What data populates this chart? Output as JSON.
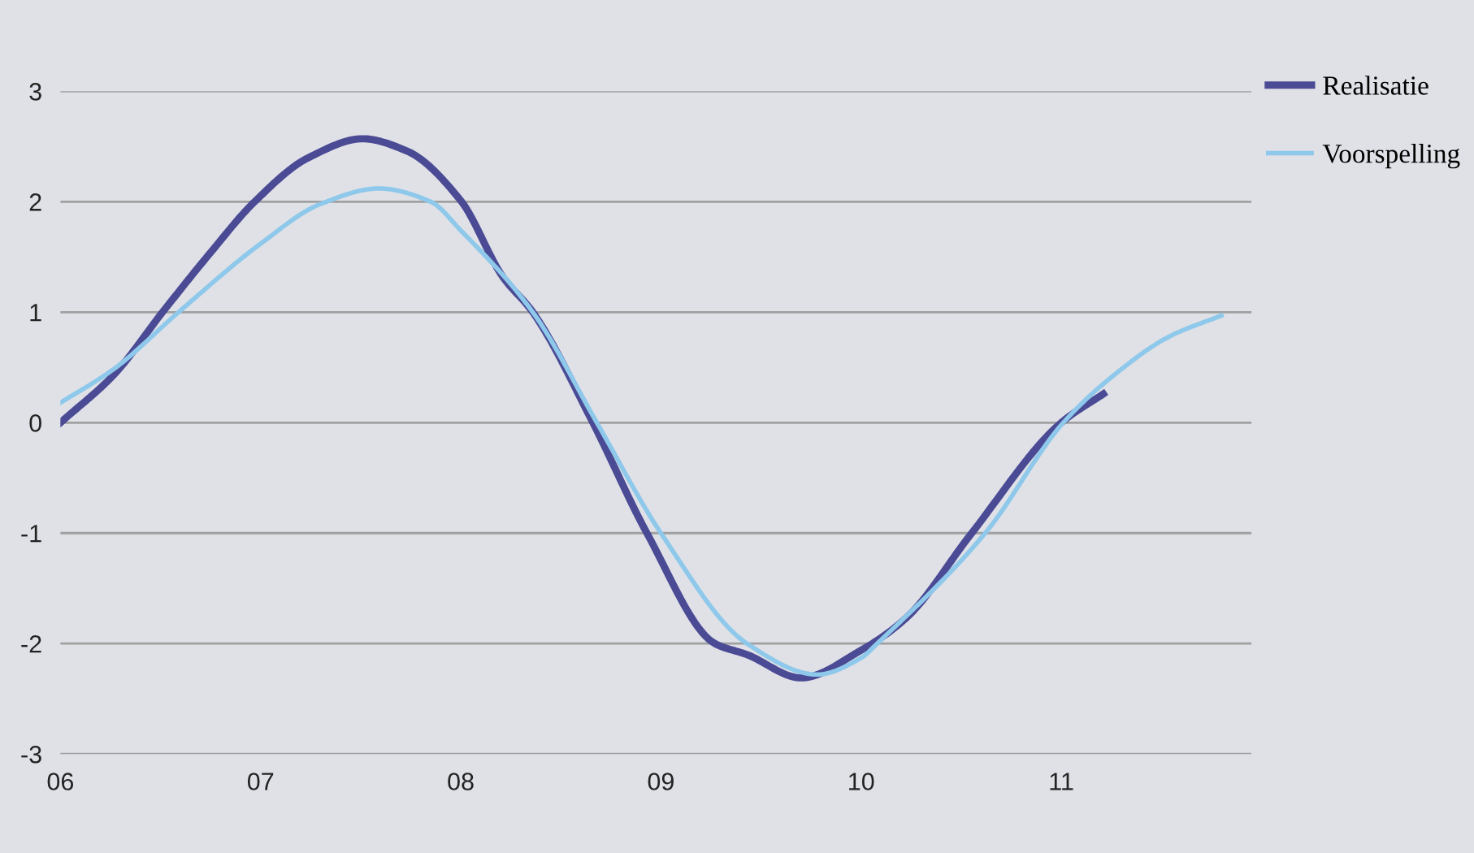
{
  "chart_data": {
    "type": "line",
    "xlim": [
      6,
      11.95
    ],
    "xticks": [
      {
        "value": 6,
        "label": "06"
      },
      {
        "value": 7,
        "label": "07"
      },
      {
        "value": 8,
        "label": "08"
      },
      {
        "value": 9,
        "label": "09"
      },
      {
        "value": 10,
        "label": "10"
      },
      {
        "value": 11,
        "label": "11"
      }
    ],
    "ylim": [
      -3,
      3
    ],
    "yticks": [
      -3,
      -2,
      -1,
      0,
      1,
      2,
      3
    ],
    "grid": "y",
    "legend": "top right",
    "line_style": "solid",
    "series": [
      {
        "name": "Realisatie",
        "color": "#4b4a94",
        "x": [
          6.0,
          6.27,
          6.51,
          6.75,
          6.97,
          7.24,
          7.51,
          7.73,
          8.0,
          8.21,
          8.36,
          8.66,
          8.93,
          9.27,
          9.43,
          9.7,
          10.0,
          10.23,
          10.54,
          11.0,
          11.21
        ],
        "values": [
          0,
          0.44,
          1.0,
          1.54,
          2.0,
          2.4,
          2.57,
          2.46,
          2.01,
          1.32,
          1.0,
          0,
          -1.0,
          -2.0,
          -2.1,
          -2.31,
          -2.06,
          -1.76,
          -1.03,
          0,
          0.26
        ]
      },
      {
        "name": "Voorspelling",
        "color": "#8ec8ea",
        "x": [
          6.0,
          6.27,
          6.59,
          7.0,
          7.3,
          7.59,
          7.85,
          8.0,
          8.36,
          8.68,
          9.0,
          9.43,
          9.78,
          10.0,
          10.08,
          10.62,
          11.01,
          11.27,
          11.54,
          11.8
        ],
        "values": [
          0.18,
          0.49,
          1.0,
          1.62,
          1.98,
          2.12,
          2.0,
          1.74,
          1.0,
          0,
          -1.0,
          -2.0,
          -2.28,
          -2.13,
          -2.0,
          -1.0,
          0,
          0.44,
          0.78,
          0.97
        ]
      }
    ]
  }
}
